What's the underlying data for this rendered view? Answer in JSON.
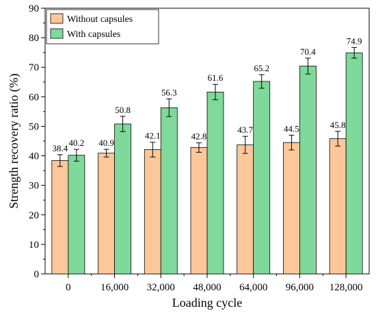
{
  "chart_data": {
    "type": "bar",
    "xlabel": "Loading cycle",
    "ylabel": "Strength recovery ratio (%)",
    "categories": [
      "0",
      "16,000",
      "32,000",
      "48,000",
      "64,000",
      "96,000",
      "128,000"
    ],
    "ylim": [
      0,
      90
    ],
    "yticks": [
      0,
      10,
      20,
      30,
      40,
      50,
      60,
      70,
      80,
      90
    ],
    "series": [
      {
        "name": "Without capsules",
        "color": "#FDC79A",
        "values": [
          38.4,
          40.9,
          42.1,
          42.8,
          43.7,
          44.5,
          45.8
        ],
        "labels": [
          "38.4",
          "40.9",
          "42.1",
          "42.8",
          "43.7",
          "44.5",
          "45.8"
        ],
        "errors": [
          2.0,
          1.3,
          2.5,
          1.6,
          2.9,
          2.5,
          2.5
        ]
      },
      {
        "name": "With capsules",
        "color": "#7FD99A",
        "values": [
          40.2,
          50.8,
          56.3,
          61.6,
          65.2,
          70.4,
          74.9
        ],
        "labels": [
          "40.2",
          "50.8",
          "56.3",
          "61.6",
          "65.2",
          "70.4",
          "74.9"
        ],
        "errors": [
          2.0,
          2.6,
          3.0,
          2.6,
          2.3,
          2.7,
          1.8
        ]
      }
    ],
    "legend_position": "top-left",
    "grid": false
  }
}
